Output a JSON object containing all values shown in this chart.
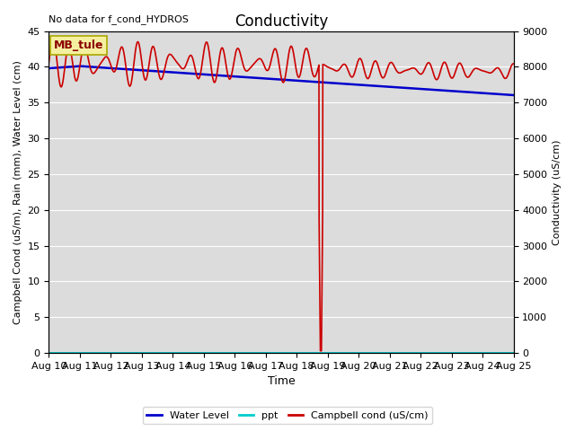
{
  "title": "Conductivity",
  "top_left_text": "No data for f_cond_HYDROS",
  "xlabel": "Time",
  "ylabel_left": "Campbell Cond (uS/m), Rain (mm), Water Level (cm)",
  "ylabel_right": "Conductivity (uS/cm)",
  "ylim_left": [
    0,
    45
  ],
  "ylim_right": [
    0,
    9000
  ],
  "xlim": [
    0,
    15
  ],
  "xtick_labels": [
    "Aug 10",
    "Aug 11",
    "Aug 12",
    "Aug 13",
    "Aug 14",
    "Aug 15",
    "Aug 16",
    "Aug 17",
    "Aug 18",
    "Aug 19",
    "Aug 20",
    "Aug 21",
    "Aug 22",
    "Aug 23",
    "Aug 24",
    "Aug 25"
  ],
  "box_label": "MB_tule",
  "bg_color": "#dcdcdc",
  "water_level_color": "#0000cc",
  "ppt_color": "#00cccc",
  "campbell_color": "#cc0000",
  "legend_labels": [
    "Water Level",
    "ppt",
    "Campbell cond (uS/cm)"
  ]
}
